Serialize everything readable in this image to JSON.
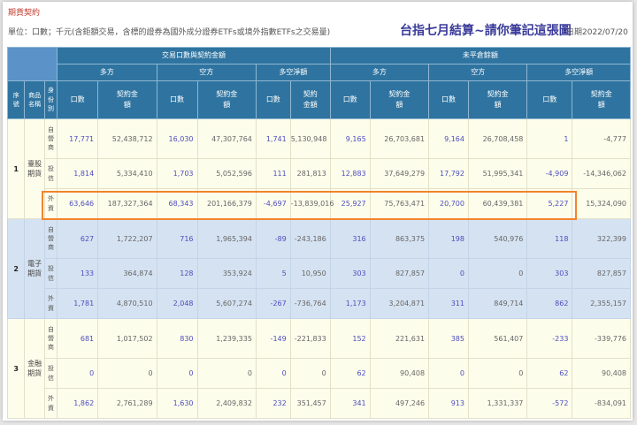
{
  "page": {
    "section_title": "期貨契約",
    "unit_note": "單位：口數；千元(含鉅額交易，含標的證券為國外成分證券ETFs或境外指數ETFs之交易量)",
    "headline": "台指七月結算~請你筆記這張圖",
    "date_label": "日期2022/07/20"
  },
  "colors": {
    "header_bg": "#2f74a0",
    "header_corner_bg": "#5b93c9",
    "row_yellow": "#fdfdec",
    "row_blue": "#d5e2f1",
    "lots_text": "#4d4dbf",
    "highlight_border": "#f0852d",
    "section_title": "#c0392b",
    "headline": "#3a3a9a"
  },
  "table": {
    "group_headers": [
      "交易口數與契約金額",
      "未平倉餘額"
    ],
    "side_headers": [
      "多方",
      "空方",
      "多空淨額",
      "多方",
      "空方",
      "多空淨額"
    ],
    "left_headers": {
      "index": "序號",
      "product": "商品名稱",
      "identity": "身份別"
    },
    "col_headers": {
      "lots": "口數",
      "amount": "契約金額"
    },
    "groups": [
      {
        "index": "1",
        "product": "臺股期貨",
        "rows": [
          {
            "identity": "自營商",
            "values": [
              "17,771",
              "52,438,712",
              "16,030",
              "47,307,764",
              "1,741",
              "5,130,948",
              "9,165",
              "26,703,681",
              "9,164",
              "26,708,458",
              "1",
              "-4,777"
            ]
          },
          {
            "identity": "投信",
            "values": [
              "1,814",
              "5,334,410",
              "1,703",
              "5,052,596",
              "111",
              "281,813",
              "12,883",
              "37,649,279",
              "17,792",
              "51,995,341",
              "-4,909",
              "-14,346,062"
            ]
          },
          {
            "identity": "外資",
            "values": [
              "63,646",
              "187,327,364",
              "68,343",
              "201,166,379",
              "-4,697",
              "-13,839,016",
              "25,927",
              "75,763,471",
              "20,700",
              "60,439,381",
              "5,227",
              "15,324,090"
            ]
          }
        ]
      },
      {
        "index": "2",
        "product": "電子期貨",
        "rows": [
          {
            "identity": "自營商",
            "values": [
              "627",
              "1,722,207",
              "716",
              "1,965,394",
              "-89",
              "-243,186",
              "316",
              "863,375",
              "198",
              "540,976",
              "118",
              "322,399"
            ]
          },
          {
            "identity": "投信",
            "values": [
              "133",
              "364,874",
              "128",
              "353,924",
              "5",
              "10,950",
              "303",
              "827,857",
              "0",
              "0",
              "303",
              "827,857"
            ]
          },
          {
            "identity": "外資",
            "values": [
              "1,781",
              "4,870,510",
              "2,048",
              "5,607,274",
              "-267",
              "-736,764",
              "1,173",
              "3,204,871",
              "311",
              "849,714",
              "862",
              "2,355,157"
            ]
          }
        ]
      },
      {
        "index": "3",
        "product": "金融期貨",
        "rows": [
          {
            "identity": "自營商",
            "values": [
              "681",
              "1,017,502",
              "830",
              "1,239,335",
              "-149",
              "-221,833",
              "152",
              "221,631",
              "385",
              "561,407",
              "-233",
              "-339,776"
            ]
          },
          {
            "identity": "投信",
            "values": [
              "0",
              "0",
              "0",
              "0",
              "0",
              "0",
              "62",
              "90,408",
              "0",
              "0",
              "62",
              "90,408"
            ]
          },
          {
            "identity": "外資",
            "values": [
              "1,862",
              "2,761,289",
              "1,630",
              "2,409,832",
              "232",
              "351,457",
              "341",
              "497,246",
              "913",
              "1,331,337",
              "-572",
              "-834,091"
            ]
          }
        ]
      }
    ]
  }
}
